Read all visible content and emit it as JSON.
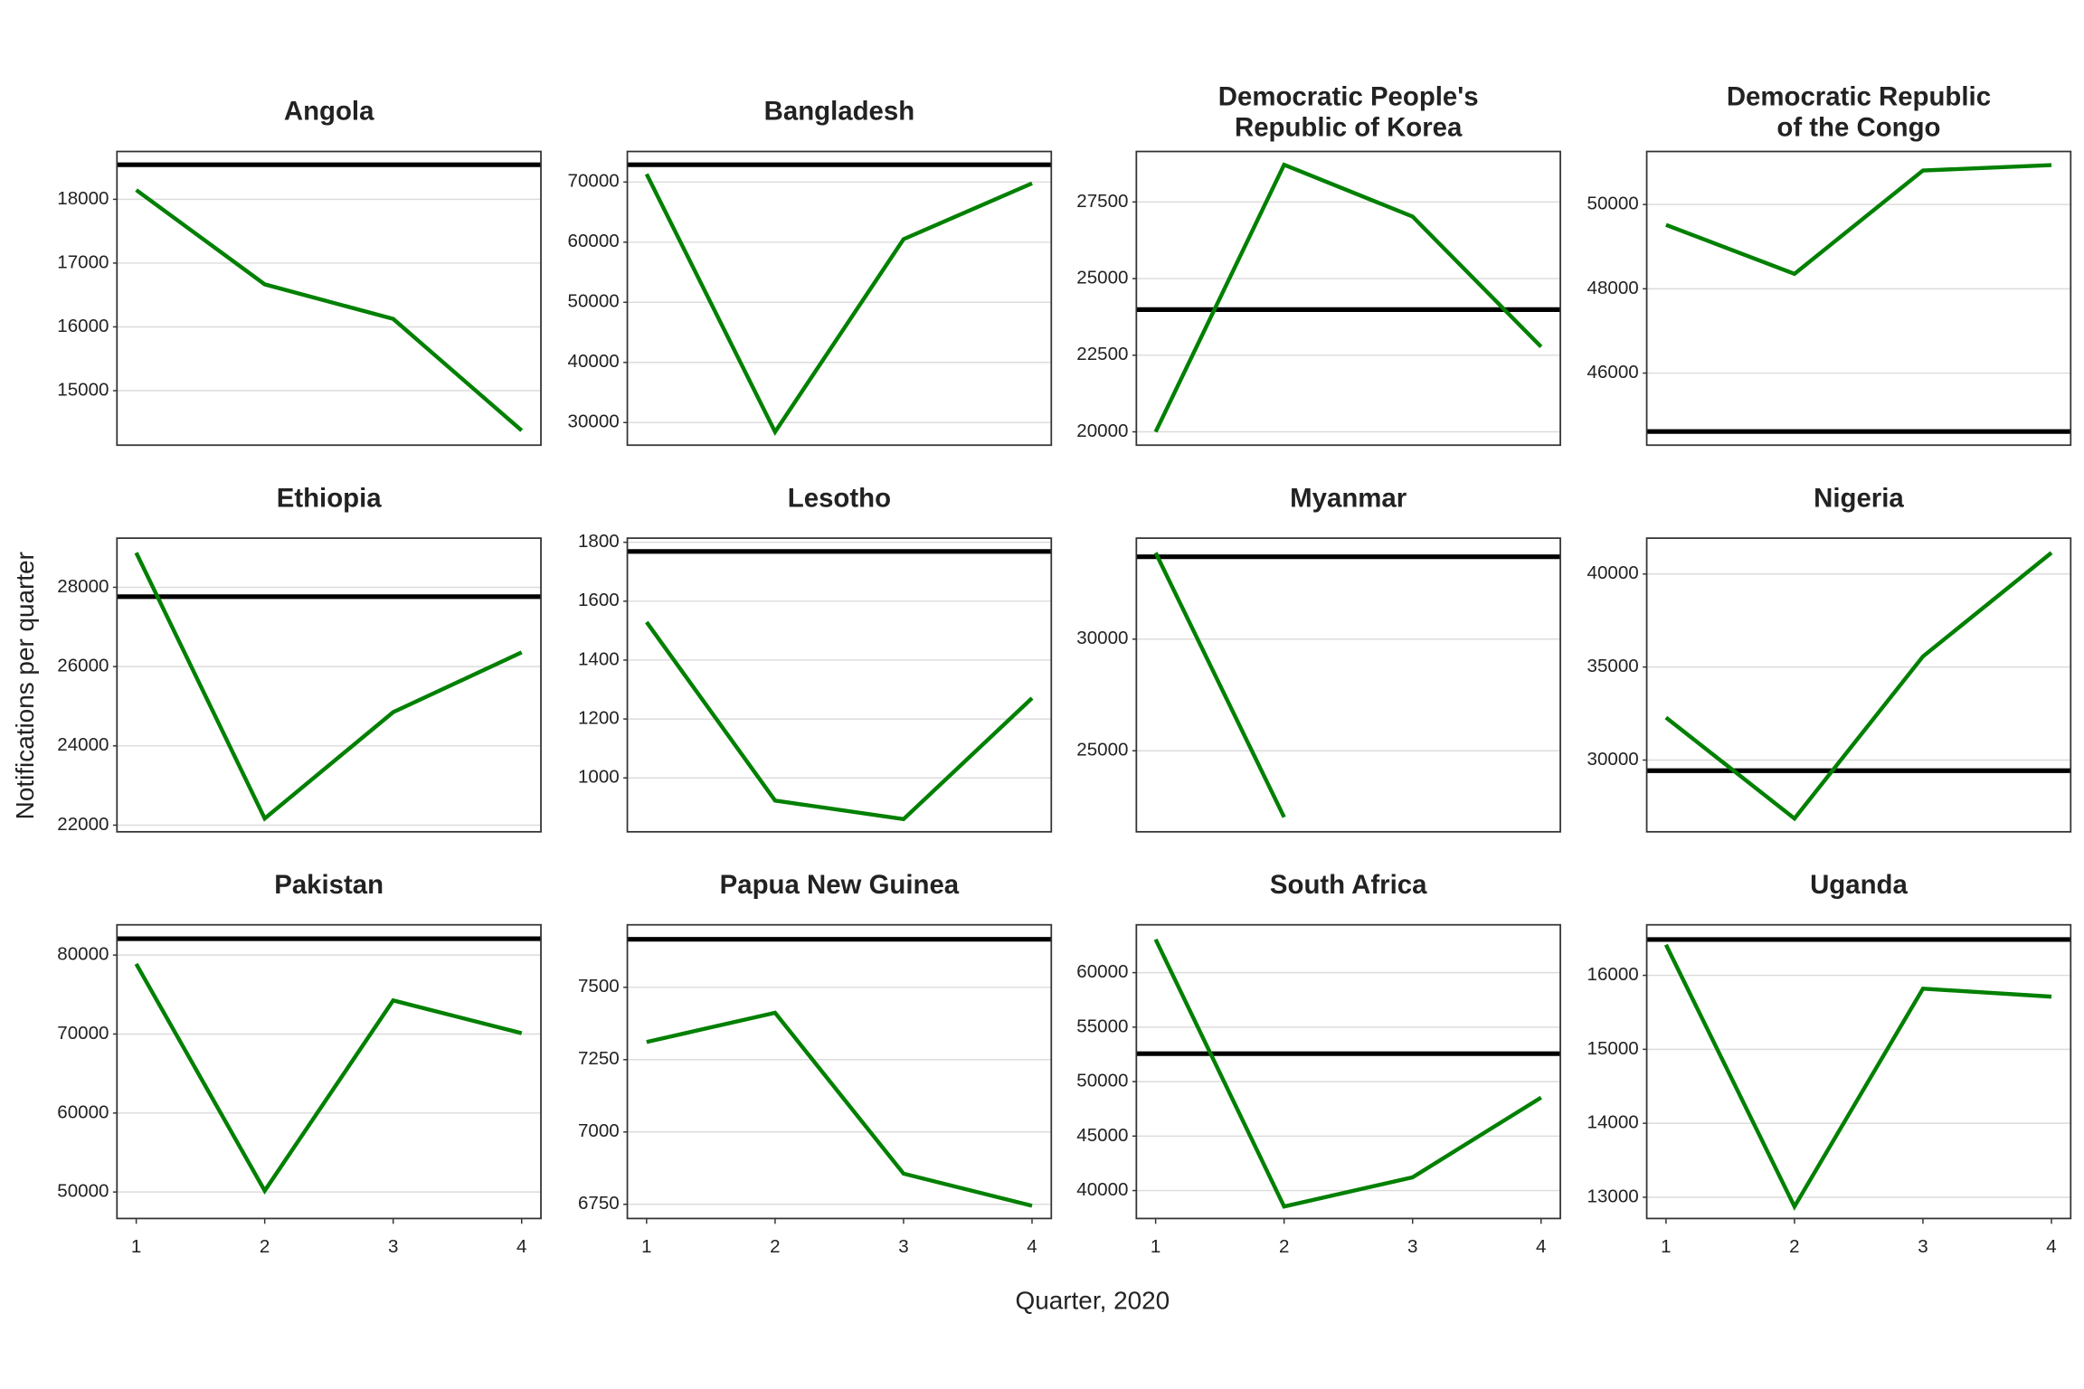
{
  "xlabel": "Quarter, 2020",
  "ylabel": "Notifications per quarter",
  "chart_data": [
    {
      "type": "line",
      "title": "Angola",
      "x": [
        1,
        2,
        3,
        4
      ],
      "series": [
        {
          "color": "#008000",
          "values": [
            18146,
            16667,
            16125,
            14375
          ]
        }
      ],
      "hline": 18542,
      "hline_color": "#000000",
      "xlim": [
        0.85,
        4.15
      ],
      "ylim": [
        14146,
        18750
      ],
      "yticks": [
        15000,
        16000,
        17000,
        18000
      ],
      "grid": true
    },
    {
      "type": "line",
      "title": "Bangladesh",
      "x": [
        1,
        2,
        3,
        4
      ],
      "series": [
        {
          "color": "#008000",
          "values": [
            71326,
            28453,
            60497,
            69779
          ]
        }
      ],
      "hline": 72873,
      "hline_color": "#000000",
      "xlim": [
        0.85,
        4.15
      ],
      "ylim": [
        26243,
        75083
      ],
      "yticks": [
        30000,
        40000,
        50000,
        60000,
        70000
      ],
      "grid": true
    },
    {
      "type": "line",
      "title": [
        "Democratic People's",
        "Republic of Korea"
      ],
      "x": [
        1,
        2,
        3,
        4
      ],
      "series": [
        {
          "color": "#008000",
          "values": [
            20000,
            28714,
            27023,
            22775
          ]
        }
      ],
      "hline": 23988,
      "hline_color": "#000000",
      "xlim": [
        0.85,
        4.15
      ],
      "ylim": [
        19566,
        29147
      ],
      "yticks": [
        20000,
        22500,
        25000,
        27500
      ],
      "grid": true
    },
    {
      "type": "line",
      "title": [
        "Democratic Republic",
        "of the Congo"
      ],
      "x": [
        1,
        2,
        3,
        4
      ],
      "series": [
        {
          "color": "#008000",
          "values": [
            49516,
            48355,
            50806,
            50935
          ]
        }
      ],
      "hline": 44613,
      "hline_color": "#000000",
      "xlim": [
        0.85,
        4.15
      ],
      "ylim": [
        44290,
        51258
      ],
      "yticks": [
        46000,
        48000,
        50000
      ],
      "grid": true
    },
    {
      "type": "line",
      "title": "Ethiopia",
      "x": [
        1,
        2,
        3,
        4
      ],
      "series": [
        {
          "color": "#008000",
          "values": [
            28872,
            22168,
            24850,
            26359
          ]
        }
      ],
      "hline": 27765,
      "hline_color": "#000000",
      "xlim": [
        0.85,
        4.15
      ],
      "ylim": [
        21832,
        29240
      ],
      "yticks": [
        22000,
        24000,
        26000,
        28000
      ],
      "grid": true
    },
    {
      "type": "line",
      "title": "Lesotho",
      "x": [
        1,
        2,
        3,
        4
      ],
      "series": [
        {
          "color": "#008000",
          "values": [
            1529,
            923,
            860,
            1271
          ]
        }
      ],
      "hline": 1769,
      "hline_color": "#000000",
      "xlim": [
        0.85,
        4.15
      ],
      "ylim": [
        817,
        1814
      ],
      "yticks": [
        1000,
        1200,
        1400,
        1600,
        1800
      ],
      "grid": true
    },
    {
      "type": "line",
      "title": "Myanmar",
      "x": [
        1,
        2,
        3,
        4
      ],
      "series": [
        {
          "color": "#008000",
          "values": [
            33869,
            22024,
            null,
            null
          ]
        }
      ],
      "hline": 33690,
      "hline_color": "#000000",
      "xlim": [
        0.85,
        4.15
      ],
      "ylim": [
        21369,
        34524
      ],
      "yticks": [
        25000,
        30000
      ],
      "grid": true
    },
    {
      "type": "line",
      "title": "Nigeria",
      "x": [
        1,
        2,
        3,
        4
      ],
      "series": [
        {
          "color": "#008000",
          "values": [
            32286,
            26857,
            35571,
            41143
          ]
        }
      ],
      "hline": 29429,
      "hline_color": "#000000",
      "xlim": [
        0.85,
        4.15
      ],
      "ylim": [
        26143,
        41929
      ],
      "yticks": [
        30000,
        35000,
        40000
      ],
      "grid": true
    },
    {
      "type": "line",
      "title": "Pakistan",
      "x": [
        1,
        2,
        3,
        4
      ],
      "series": [
        {
          "color": "#008000",
          "values": [
            78883,
            50160,
            74255,
            70106
          ]
        }
      ],
      "hline": 82074,
      "hline_color": "#000000",
      "xlim": [
        0.85,
        4.15
      ],
      "ylim": [
        46649,
        83830
      ],
      "yticks": [
        50000,
        60000,
        70000,
        80000
      ],
      "xticks": [
        1,
        2,
        3,
        4
      ],
      "grid": true
    },
    {
      "type": "line",
      "title": "Papua New Guinea",
      "x": [
        1,
        2,
        3,
        4
      ],
      "series": [
        {
          "color": "#008000",
          "values": [
            7311,
            7412,
            6856,
            6745
          ]
        }
      ],
      "hline": 7666,
      "hline_color": "#000000",
      "xlim": [
        0.85,
        4.15
      ],
      "ylim": [
        6701,
        7716
      ],
      "yticks": [
        6750,
        7000,
        7250,
        7500
      ],
      "xticks": [
        1,
        2,
        3,
        4
      ],
      "grid": true
    },
    {
      "type": "line",
      "title": "South Africa",
      "x": [
        1,
        2,
        3,
        4
      ],
      "series": [
        {
          "color": "#008000",
          "values": [
            63049,
            38537,
            41220,
            48537
          ]
        }
      ],
      "hline": 52561,
      "hline_color": "#000000",
      "xlim": [
        0.85,
        4.15
      ],
      "ylim": [
        37439,
        64390
      ],
      "yticks": [
        40000,
        45000,
        50000,
        55000,
        60000
      ],
      "xticks": [
        1,
        2,
        3,
        4
      ],
      "grid": true
    },
    {
      "type": "line",
      "title": "Uganda",
      "x": [
        1,
        2,
        3,
        4
      ],
      "series": [
        {
          "color": "#008000",
          "values": [
            16413,
            12874,
            15820,
            15712
          ]
        }
      ],
      "hline": 16485,
      "hline_color": "#000000",
      "xlim": [
        0.85,
        4.15
      ],
      "ylim": [
        12713,
        16683
      ],
      "yticks": [
        13000,
        14000,
        15000,
        16000
      ],
      "xticks": [
        1,
        2,
        3,
        4
      ],
      "grid": true
    }
  ]
}
